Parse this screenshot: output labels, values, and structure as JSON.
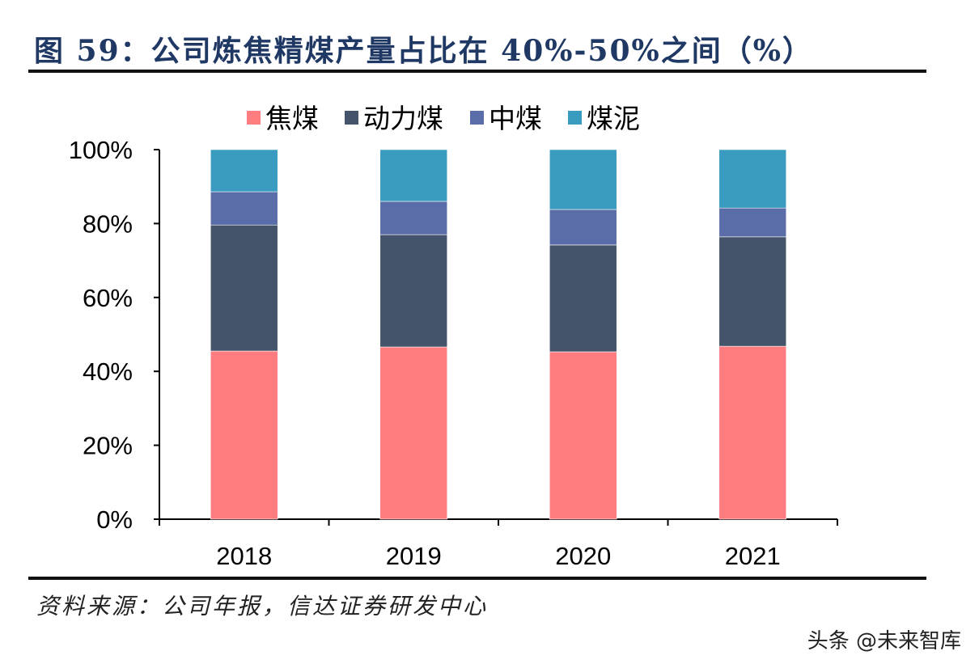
{
  "title": "图 59：公司炼焦精煤产量占比在 40%-50%之间（%）",
  "source": "资料来源：公司年报，信达证券研发中心",
  "watermark": "头条 @未来智库",
  "chart_data": {
    "type": "bar",
    "stacked": true,
    "title": "图 59：公司炼焦精煤产量占比在 40%-50%之间（%）",
    "xlabel": "",
    "ylabel": "",
    "ylim": [
      0,
      100
    ],
    "yticks": [
      "0%",
      "20%",
      "40%",
      "60%",
      "80%",
      "100%"
    ],
    "categories": [
      "2018",
      "2019",
      "2020",
      "2021"
    ],
    "legend_position": "top",
    "series": [
      {
        "name": "焦煤",
        "color": "#FF7C80",
        "values": [
          45.5,
          46.6,
          45.3,
          46.8
        ]
      },
      {
        "name": "动力煤",
        "color": "#44546A",
        "values": [
          34.1,
          30.4,
          28.9,
          29.6
        ]
      },
      {
        "name": "中煤",
        "color": "#5A6DA8",
        "values": [
          9.0,
          9.0,
          9.6,
          7.8
        ]
      },
      {
        "name": "煤泥",
        "color": "#3A9BC1",
        "values": [
          11.4,
          14.0,
          16.2,
          15.8
        ]
      }
    ]
  }
}
